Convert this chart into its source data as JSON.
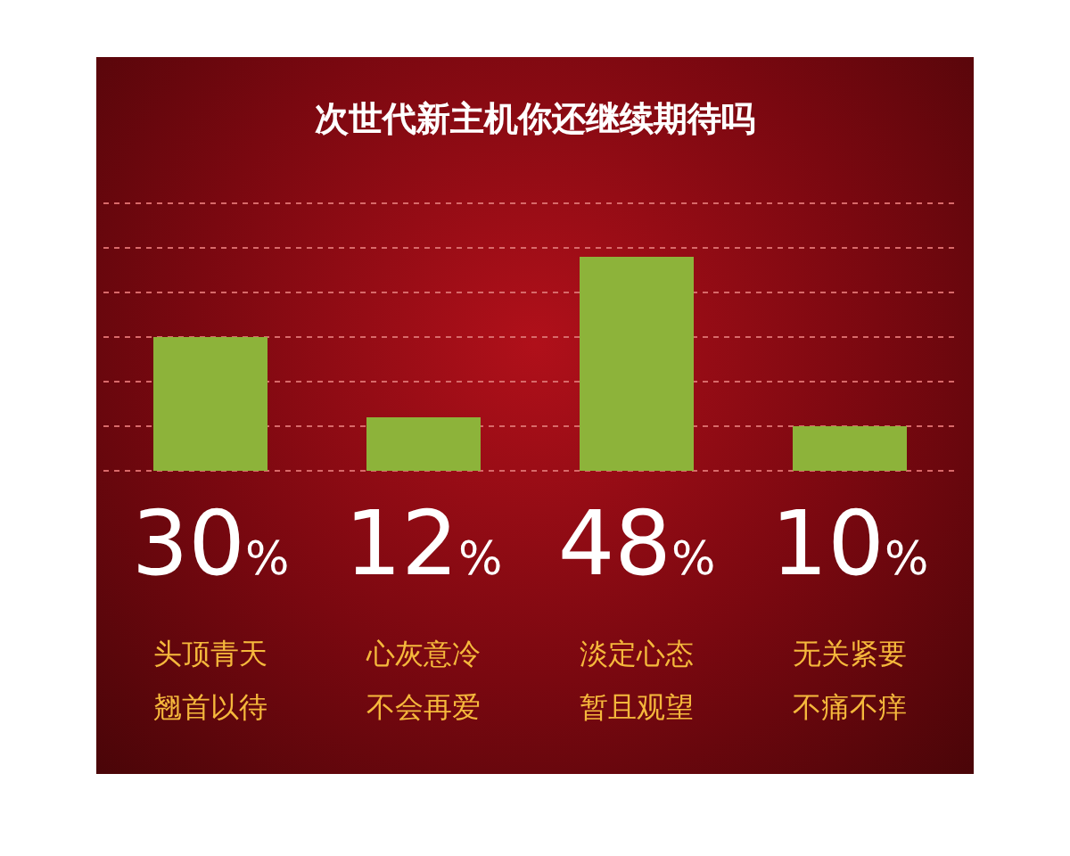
{
  "chart_data": {
    "type": "bar",
    "title": "次世代新主机你还继续期待吗",
    "categories": [
      "头顶青天翘首以待",
      "心灰意冷不会再爱",
      "淡定心态暂且观望",
      "无关紧要不痛不痒"
    ],
    "values": [
      30,
      12,
      48,
      10
    ],
    "value_labels": [
      "30%",
      "12%",
      "48%",
      "10%"
    ],
    "color": "#8db33a",
    "ylim": [
      0,
      60
    ],
    "yticks": [
      {
        "value": 0,
        "label": null
      },
      {
        "value": 10,
        "label": null
      },
      {
        "value": 20,
        "label": null
      },
      {
        "value": 30,
        "label": null
      },
      {
        "value": 40,
        "label": null
      },
      {
        "value": 50,
        "label": null
      },
      {
        "value": 60,
        "label": null
      }
    ],
    "grid": "y"
  }
}
